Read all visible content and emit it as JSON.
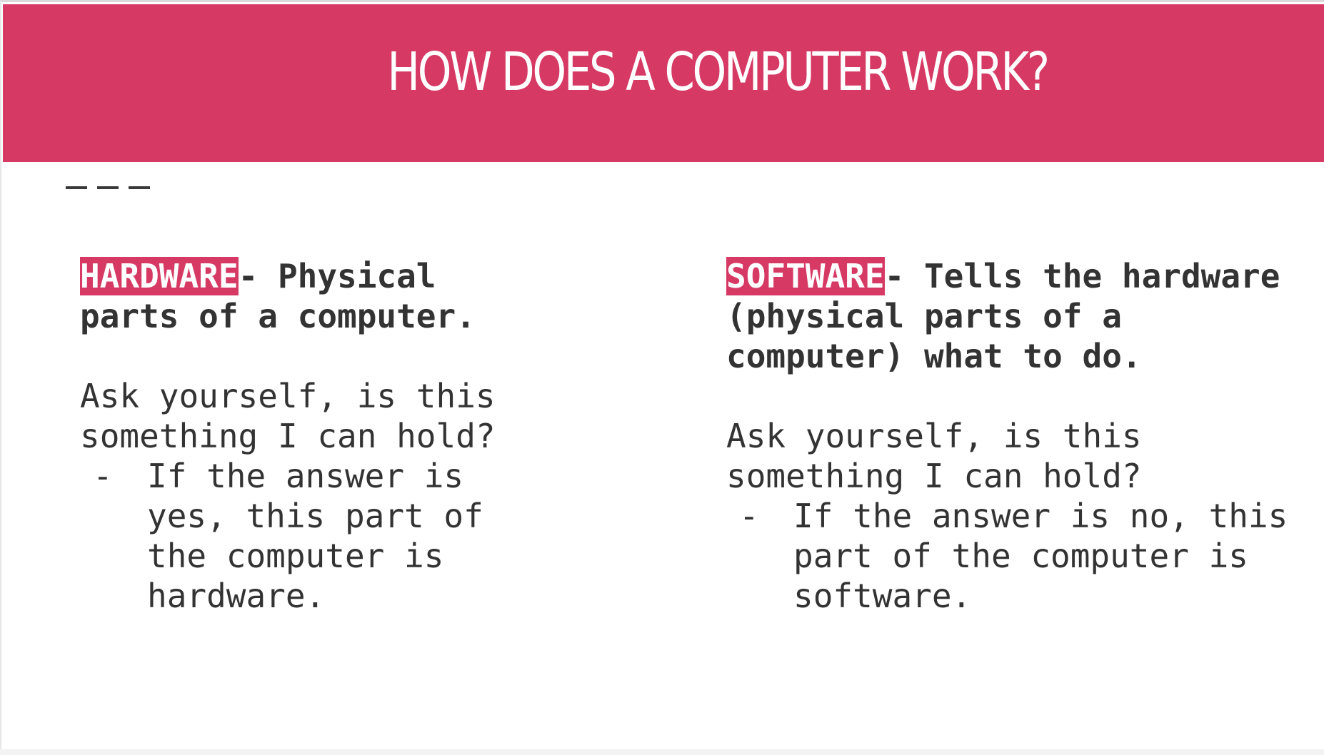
{
  "slide": {
    "title": "HOW DOES A COMPUTER WORK?",
    "divider": "———",
    "accent_color": "#d63a64"
  },
  "left": {
    "keyword": "HARDWARE",
    "definition": "- Physical parts of a computer.",
    "question": "Ask yourself, is this something I can hold?",
    "bullet_mark": "-",
    "bullet": "If the answer is yes, this part of the computer is hardware."
  },
  "right": {
    "keyword": "SOFTWARE",
    "definition": "- Tells the hardware (physical parts of a computer) what to do.",
    "question": "Ask yourself, is this something I can hold?",
    "bullet_mark": "-",
    "bullet": "If the answer is no, this part of the computer is software."
  }
}
